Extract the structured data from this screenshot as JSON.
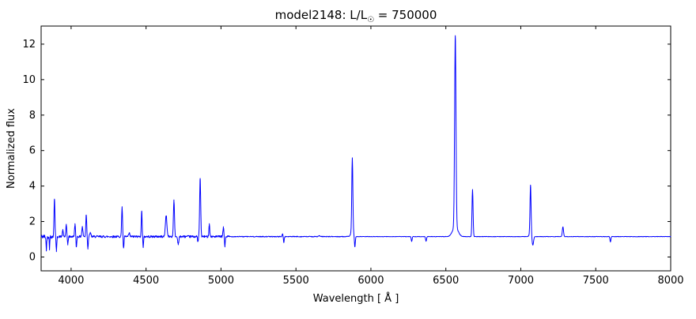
{
  "figure": {
    "background_color": "#ffffff",
    "axes_color": "#000000"
  },
  "title_parts": {
    "prefix": "model2148: L/L",
    "sub": "☉",
    "suffix": " = 750000"
  },
  "chart_data": {
    "type": "line",
    "title": "model2148: L/L☉ = 750000",
    "xlabel": "Wavelength [ Å ]",
    "ylabel": "Normalized flux",
    "xlim": [
      3800,
      8000
    ],
    "ylim": [
      -0.78,
      13.02
    ],
    "x_ticks": [
      4000,
      4500,
      5000,
      5500,
      6000,
      6500,
      7000,
      7500,
      8000
    ],
    "y_ticks": [
      0,
      2,
      4,
      6,
      8,
      10,
      12
    ],
    "grid": false,
    "legend": false,
    "line_color": "#0000ff",
    "continuum_level": 1.15,
    "noise_regions": [
      {
        "range": [
          3800,
          3880
        ],
        "amplitude": 0.11
      },
      {
        "range": [
          3880,
          5060
        ],
        "amplitude": 0.06
      },
      {
        "range": [
          5060,
          5900
        ],
        "amplitude": 0.022
      },
      {
        "range": [
          5900,
          8000
        ],
        "amplitude": 0.012
      }
    ],
    "emission_lines": [
      {
        "wavelength": 3889,
        "peak_flux": 3.3,
        "sigma": 3.0
      },
      {
        "wavelength": 3945,
        "peak_flux": 1.5,
        "sigma": 3.0
      },
      {
        "wavelength": 3968,
        "peak_flux": 1.8,
        "sigma": 3.0
      },
      {
        "wavelength": 4026,
        "peak_flux": 1.85,
        "sigma": 3.0
      },
      {
        "wavelength": 4075,
        "peak_flux": 1.7,
        "sigma": 3.5
      },
      {
        "wavelength": 4101,
        "peak_flux": 2.4,
        "sigma": 3.0
      },
      {
        "wavelength": 4128,
        "peak_flux": 1.35,
        "sigma": 4.0
      },
      {
        "wavelength": 4340,
        "peak_flux": 2.85,
        "sigma": 3.0
      },
      {
        "wavelength": 4388,
        "peak_flux": 1.35,
        "sigma": 3.5
      },
      {
        "wavelength": 4471,
        "peak_flux": 2.55,
        "sigma": 3.0
      },
      {
        "wavelength": 4634,
        "peak_flux": 2.35,
        "sigma": 5.0
      },
      {
        "wavelength": 4686,
        "peak_flux": 3.2,
        "sigma": 3.5
      },
      {
        "wavelength": 4861,
        "peak_flux": 4.45,
        "sigma": 3.5
      },
      {
        "wavelength": 4922,
        "peak_flux": 1.85,
        "sigma": 3.0
      },
      {
        "wavelength": 5016,
        "peak_flux": 1.65,
        "sigma": 3.0
      },
      {
        "wavelength": 5411,
        "peak_flux": 1.3,
        "sigma": 3.0
      },
      {
        "wavelength": 5655,
        "peak_flux": 1.2,
        "sigma": 4.0
      },
      {
        "wavelength": 5876,
        "peak_flux": 5.35,
        "sigma": 3.5
      },
      {
        "wavelength": 6563,
        "peak_flux": 11.93,
        "sigma": 4.5
      },
      {
        "wavelength": 6678,
        "peak_flux": 3.8,
        "sigma": 3.5
      },
      {
        "wavelength": 7065,
        "peak_flux": 3.9,
        "sigma": 3.5
      },
      {
        "wavelength": 7281,
        "peak_flux": 1.7,
        "sigma": 4.0
      }
    ],
    "absorption_lines": [
      {
        "wavelength": 3835,
        "min_flux": 0.45,
        "sigma": 2.5
      },
      {
        "wavelength": 3856,
        "min_flux": 0.5,
        "sigma": 2.0
      },
      {
        "wavelength": 3902,
        "min_flux": 0.35,
        "sigma": 2.5
      },
      {
        "wavelength": 3978,
        "min_flux": 0.7,
        "sigma": 2.5
      },
      {
        "wavelength": 4035,
        "min_flux": 0.55,
        "sigma": 2.5
      },
      {
        "wavelength": 4112,
        "min_flux": 0.5,
        "sigma": 2.5
      },
      {
        "wavelength": 4350,
        "min_flux": 0.45,
        "sigma": 2.5
      },
      {
        "wavelength": 4481,
        "min_flux": 0.55,
        "sigma": 2.5
      },
      {
        "wavelength": 4715,
        "min_flux": 0.75,
        "sigma": 4.0
      },
      {
        "wavelength": 4846,
        "min_flux": 0.85,
        "sigma": 2.5
      },
      {
        "wavelength": 5026,
        "min_flux": 0.6,
        "sigma": 2.5
      },
      {
        "wavelength": 5419,
        "min_flux": 0.8,
        "sigma": 2.5
      },
      {
        "wavelength": 5893,
        "min_flux": 0.5,
        "sigma": 3.0
      },
      {
        "wavelength": 6272,
        "min_flux": 0.88,
        "sigma": 3.0
      },
      {
        "wavelength": 6368,
        "min_flux": 0.88,
        "sigma": 3.0
      },
      {
        "wavelength": 7080,
        "min_flux": 0.65,
        "sigma": 5.0
      },
      {
        "wavelength": 7598,
        "min_flux": 0.85,
        "sigma": 3.0
      }
    ],
    "broad_components": [
      {
        "wavelength": 6563,
        "amplitude": 0.55,
        "sigma": 18
      },
      {
        "wavelength": 5876,
        "amplitude": 0.25,
        "sigma": 10
      },
      {
        "wavelength": 7065,
        "amplitude": 0.15,
        "sigma": 8
      }
    ]
  }
}
